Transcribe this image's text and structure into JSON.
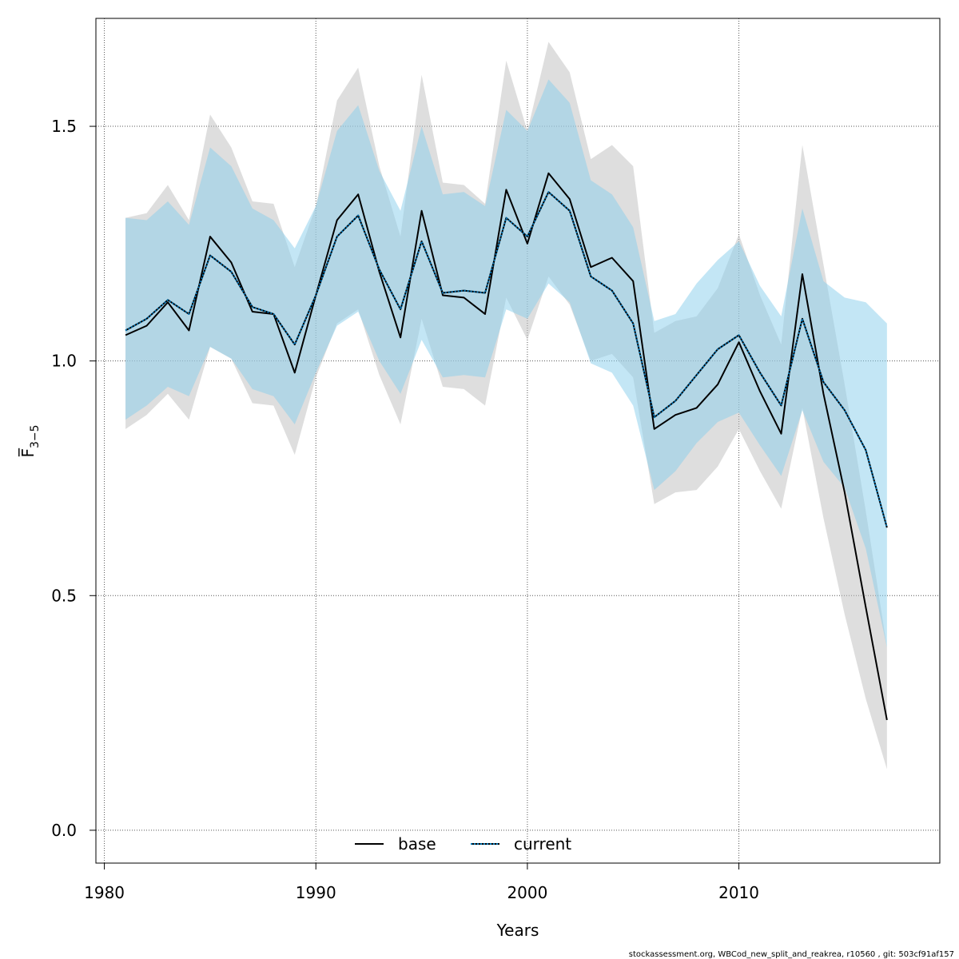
{
  "chart_data": {
    "type": "line",
    "xlabel": "Years",
    "ylabel": "F̅",
    "ylabel_subscript": "3−5",
    "xlim": [
      1979.6,
      2019.5
    ],
    "ylim": [
      -0.07,
      1.73
    ],
    "x_ticks": [
      1980,
      1990,
      2000,
      2010
    ],
    "y_ticks": [
      0.0,
      0.5,
      1.0,
      1.5
    ],
    "x_tick_labels": [
      "1980",
      "1990",
      "2000",
      "2010"
    ],
    "y_tick_labels": [
      "0.0",
      "0.5",
      "1.0",
      "1.5"
    ],
    "grid": true,
    "legend_position": "bottom-center",
    "x": [
      1981,
      1982,
      1983,
      1984,
      1985,
      1986,
      1987,
      1988,
      1989,
      1990,
      1991,
      1992,
      1993,
      1994,
      1995,
      1996,
      1997,
      1998,
      1999,
      2000,
      2001,
      2002,
      2003,
      2004,
      2005,
      2006,
      2007,
      2008,
      2009,
      2010,
      2011,
      2012,
      2013,
      2014,
      2015,
      2016,
      2017
    ],
    "series": [
      {
        "name": "base",
        "color": "#000000",
        "band_color": "#bebebe",
        "line_style": "solid",
        "values": [
          1.055,
          1.075,
          1.125,
          1.065,
          1.265,
          1.21,
          1.105,
          1.1,
          0.975,
          1.14,
          1.3,
          1.355,
          1.19,
          1.05,
          1.32,
          1.14,
          1.135,
          1.1,
          1.365,
          1.25,
          1.4,
          1.345,
          1.2,
          1.22,
          1.17,
          0.855,
          0.885,
          0.9,
          0.95,
          1.04,
          0.935,
          0.845,
          1.185,
          0.93,
          0.72,
          0.475,
          0.235
        ],
        "lower": [
          0.855,
          0.885,
          0.93,
          0.875,
          1.03,
          1.005,
          0.91,
          0.905,
          0.8,
          0.965,
          1.08,
          1.11,
          0.97,
          0.865,
          1.09,
          0.945,
          0.94,
          0.905,
          1.135,
          1.045,
          1.18,
          1.12,
          1.0,
          1.015,
          0.965,
          0.695,
          0.72,
          0.725,
          0.775,
          0.855,
          0.765,
          0.685,
          0.9,
          0.665,
          0.46,
          0.28,
          0.13
        ],
        "upper": [
          1.305,
          1.315,
          1.375,
          1.3,
          1.525,
          1.455,
          1.34,
          1.335,
          1.2,
          1.33,
          1.555,
          1.625,
          1.415,
          1.265,
          1.61,
          1.38,
          1.375,
          1.335,
          1.64,
          1.49,
          1.68,
          1.615,
          1.43,
          1.46,
          1.415,
          1.06,
          1.085,
          1.095,
          1.155,
          1.27,
          1.14,
          1.035,
          1.46,
          1.205,
          0.95,
          0.68,
          0.39
        ]
      },
      {
        "name": "current",
        "color": "#0072b2",
        "band_color": "#87ceeb",
        "line_style": "dotted",
        "values": [
          1.065,
          1.09,
          1.13,
          1.1,
          1.225,
          1.19,
          1.115,
          1.1,
          1.035,
          1.14,
          1.265,
          1.31,
          1.195,
          1.11,
          1.255,
          1.145,
          1.15,
          1.145,
          1.305,
          1.265,
          1.36,
          1.32,
          1.18,
          1.15,
          1.08,
          0.88,
          0.915,
          0.97,
          1.025,
          1.055,
          0.975,
          0.905,
          1.09,
          0.955,
          0.895,
          0.81,
          0.645
        ],
        "lower": [
          0.875,
          0.905,
          0.945,
          0.925,
          1.03,
          1.005,
          0.94,
          0.925,
          0.865,
          0.975,
          1.075,
          1.105,
          1.0,
          0.93,
          1.045,
          0.965,
          0.97,
          0.965,
          1.11,
          1.09,
          1.165,
          1.125,
          0.995,
          0.975,
          0.905,
          0.725,
          0.765,
          0.825,
          0.87,
          0.89,
          0.82,
          0.755,
          0.895,
          0.785,
          0.73,
          0.6,
          0.39
        ],
        "upper": [
          1.305,
          1.3,
          1.34,
          1.29,
          1.455,
          1.415,
          1.325,
          1.3,
          1.24,
          1.33,
          1.49,
          1.545,
          1.405,
          1.32,
          1.5,
          1.355,
          1.36,
          1.33,
          1.535,
          1.49,
          1.6,
          1.55,
          1.385,
          1.355,
          1.285,
          1.085,
          1.1,
          1.165,
          1.215,
          1.255,
          1.16,
          1.095,
          1.325,
          1.17,
          1.135,
          1.125,
          1.08
        ]
      }
    ]
  },
  "legend": {
    "base_label": "base",
    "current_label": "current"
  },
  "footer": {
    "text": "stockassessment.org, WBCod_new_split_and_reakrea, r10560 , git: 503cf91af157"
  }
}
